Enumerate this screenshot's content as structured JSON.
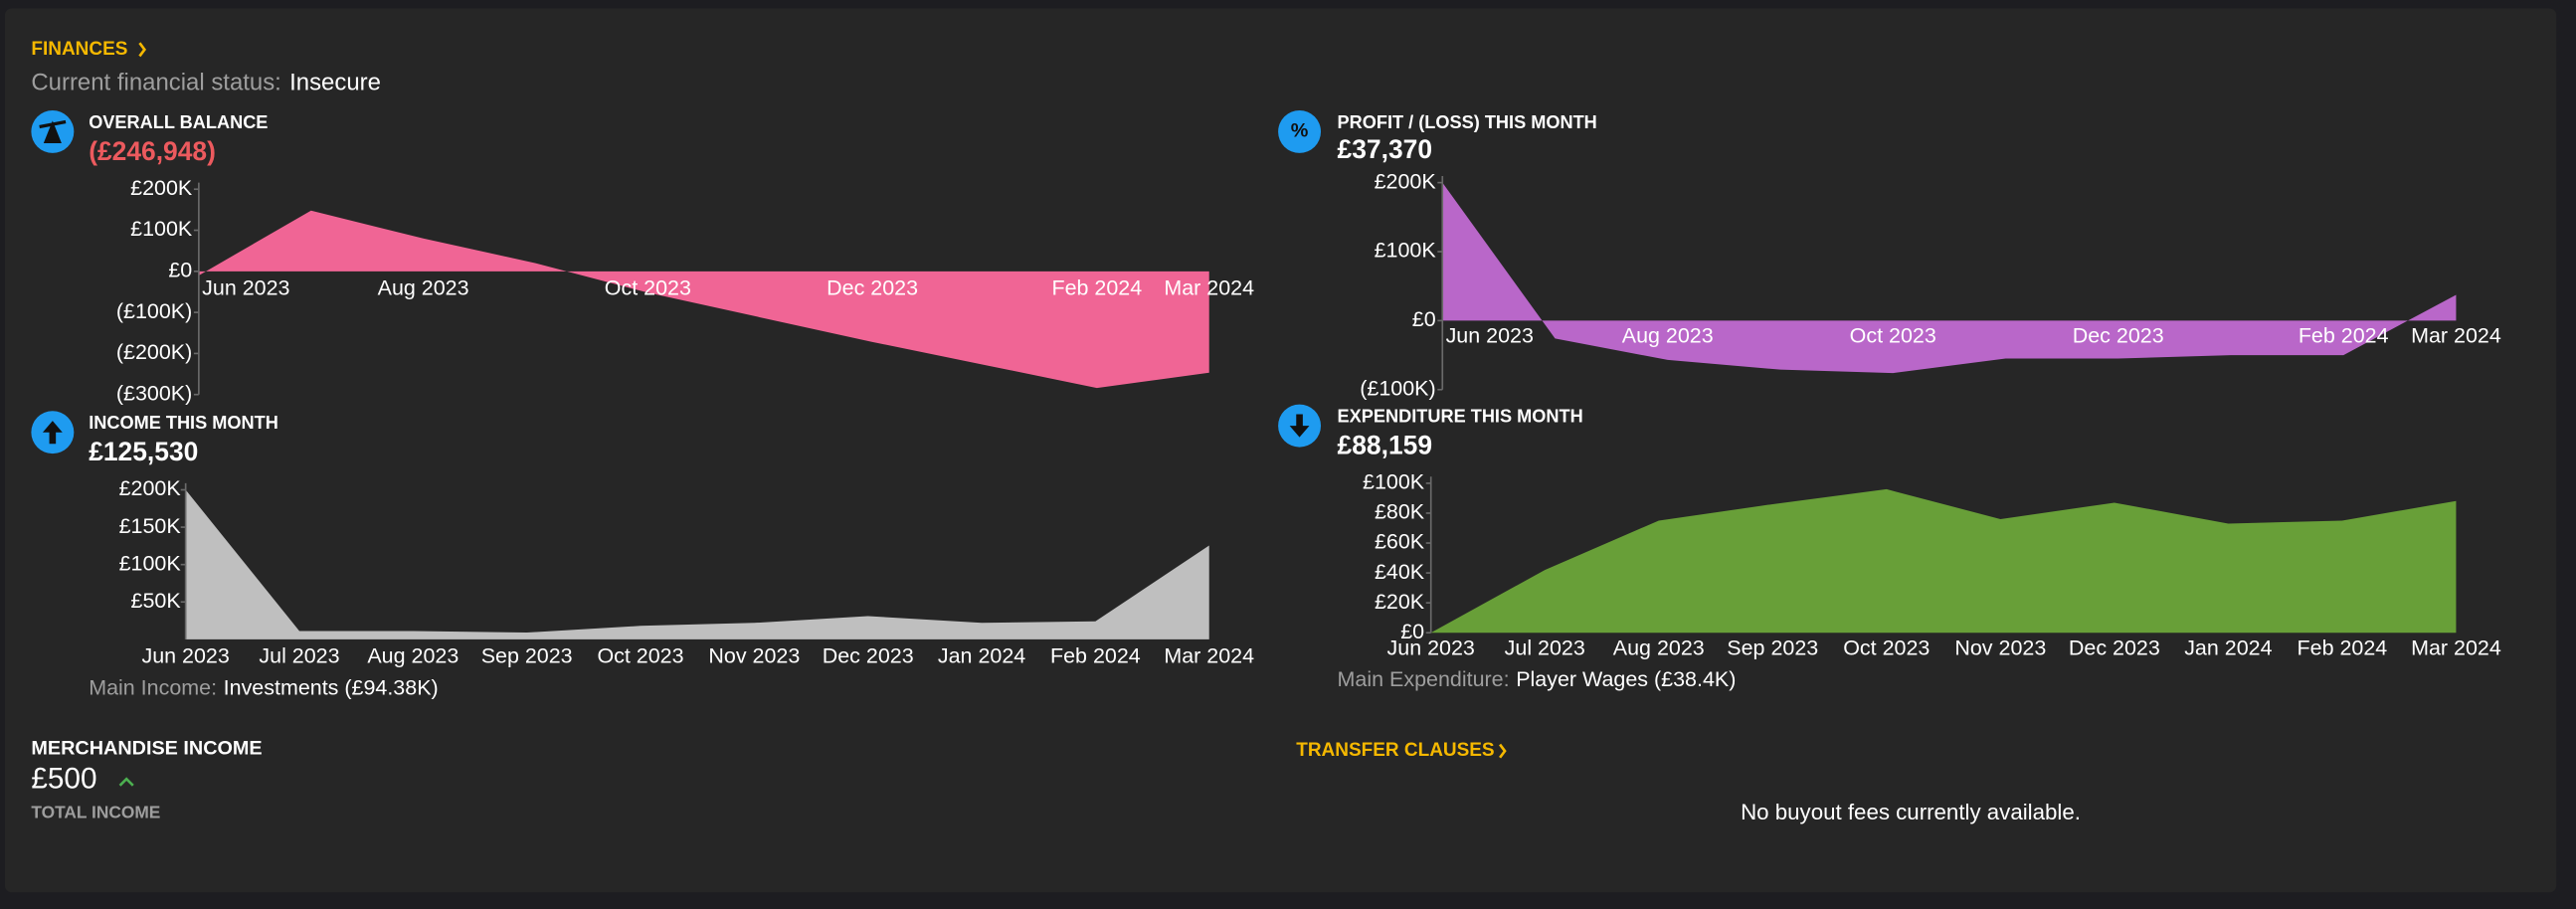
{
  "header": {
    "title": "FINANCES",
    "status_label": "Current financial status:",
    "status": "Insecure"
  },
  "chart_data": [
    {
      "type": "area",
      "title": "OVERALL BALANCE",
      "headline": "(£246,948)",
      "headline_color": "#ec5a5e",
      "categories": [
        "Jun 2023",
        null,
        "Aug 2023",
        null,
        "Oct 2023",
        null,
        "Dec 2023",
        null,
        "Feb 2024",
        "Mar 2024"
      ],
      "values": [
        -10000,
        148000,
        80000,
        20000,
        -52000,
        -112000,
        -172000,
        -228000,
        -284000,
        -246948
      ],
      "color": "#f06595",
      "ylim": [
        -300000,
        200000
      ],
      "yticks": [
        {
          "value": 200000,
          "label": "£200K"
        },
        {
          "value": 100000,
          "label": "£100K"
        },
        {
          "value": 0,
          "label": "£0"
        },
        {
          "value": -100000,
          "label": "(£100K)"
        },
        {
          "value": -200000,
          "label": "(£200K)"
        },
        {
          "value": -300000,
          "label": "(£300K)"
        }
      ]
    },
    {
      "type": "area",
      "title": "PROFIT / (LOSS) THIS MONTH",
      "headline": "£37,370",
      "headline_color": "#ffffff",
      "categories": [
        "Jun 2023",
        null,
        "Aug 2023",
        null,
        "Oct 2023",
        null,
        "Dec 2023",
        null,
        "Feb 2024",
        "Mar 2024"
      ],
      "values": [
        200000,
        -26000,
        -57000,
        -71000,
        -76000,
        -55000,
        -55000,
        -50000,
        -50000,
        37370
      ],
      "color": "#b967c9",
      "ylim": [
        -100000,
        200000
      ],
      "yticks": [
        {
          "value": 200000,
          "label": "£200K"
        },
        {
          "value": 100000,
          "label": "£100K"
        },
        {
          "value": 0,
          "label": "£0"
        },
        {
          "value": -100000,
          "label": "(£100K)"
        }
      ]
    },
    {
      "type": "area",
      "title": "INCOME THIS MONTH",
      "headline": "£125,530",
      "headline_color": "#ffffff",
      "categories": [
        "Jun 2023",
        "Jul 2023",
        "Aug 2023",
        "Sep 2023",
        "Oct 2023",
        "Nov 2023",
        "Dec 2023",
        "Jan 2024",
        "Feb 2024",
        "Mar 2024"
      ],
      "values": [
        200000,
        11000,
        11000,
        9000,
        18000,
        22000,
        31000,
        22000,
        24000,
        125530
      ],
      "color": "#bfbfbf",
      "ylim": [
        0,
        200000
      ],
      "yticks": [
        {
          "value": 200000,
          "label": "£200K"
        },
        {
          "value": 150000,
          "label": "£150K"
        },
        {
          "value": 100000,
          "label": "£100K"
        },
        {
          "value": 50000,
          "label": "£50K"
        }
      ],
      "footnote_label": "Main Income:",
      "footnote": "Investments (£94.38K)"
    },
    {
      "type": "area",
      "title": "EXPENDITURE THIS MONTH",
      "headline": "£88,159",
      "headline_color": "#ffffff",
      "categories": [
        "Jun 2023",
        "Jul 2023",
        "Aug 2023",
        "Sep 2023",
        "Oct 2023",
        "Nov 2023",
        "Dec 2023",
        "Jan 2024",
        "Feb 2024",
        "Mar 2024"
      ],
      "values": [
        0,
        42000,
        75000,
        86000,
        96000,
        76000,
        87000,
        73000,
        75000,
        88159
      ],
      "color": "#689f38",
      "ylim": [
        0,
        100000
      ],
      "yticks": [
        {
          "value": 100000,
          "label": "£100K"
        },
        {
          "value": 80000,
          "label": "£80K"
        },
        {
          "value": 60000,
          "label": "£60K"
        },
        {
          "value": 40000,
          "label": "£40K"
        },
        {
          "value": 20000,
          "label": "£20K"
        },
        {
          "value": 0,
          "label": "£0"
        }
      ],
      "footnote_label": "Main Expenditure:",
      "footnote": "Player Wages (£38.4K)"
    }
  ],
  "merchandise": {
    "title": "MERCHANDISE INCOME",
    "value": "£500",
    "caption": "TOTAL INCOME"
  },
  "transfer_clauses": {
    "title": "TRANSFER CLAUSES",
    "message": "No buyout fees currently available."
  }
}
